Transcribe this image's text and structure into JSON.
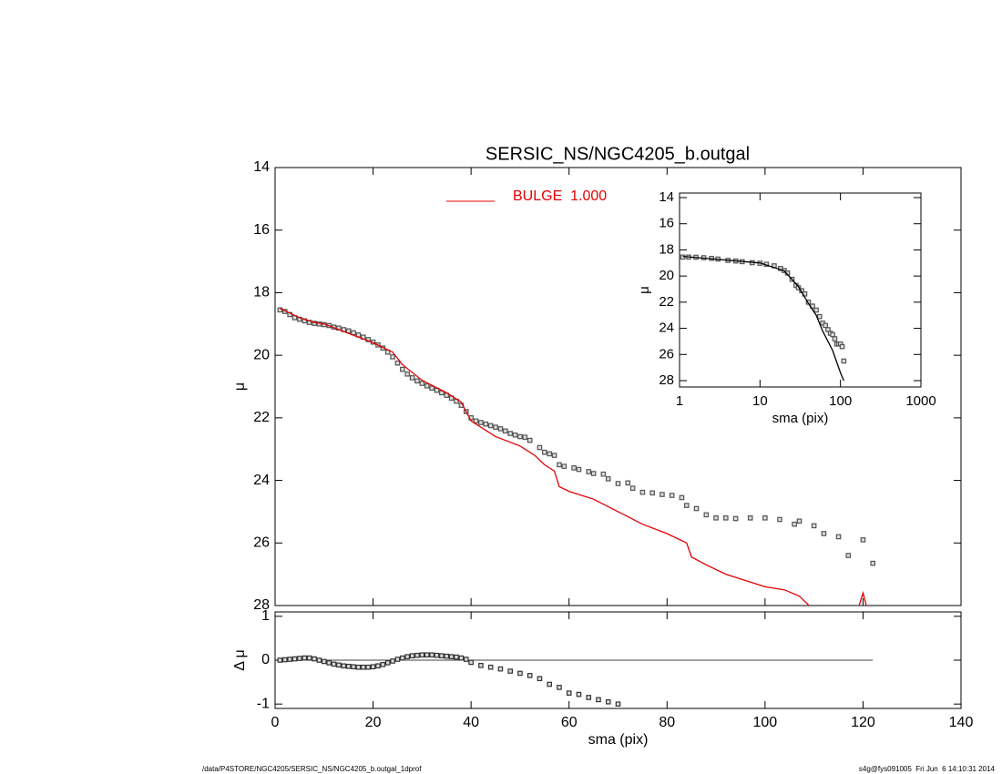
{
  "chart_data": [
    {
      "type": "scatter",
      "title": "SERSIC_NS/NGC4205_b.outgal",
      "ylabel": "μ",
      "xlim": [
        0,
        140
      ],
      "xticks": [
        0,
        20,
        40,
        60,
        80,
        100,
        120,
        140
      ],
      "ylim": [
        14,
        28
      ],
      "yticks": [
        14,
        16,
        18,
        20,
        22,
        24,
        26,
        28
      ],
      "y_inverted": true,
      "series": [
        {
          "color": "#555555",
          "mode": "markers",
          "x": [
            1,
            2,
            3,
            4,
            5,
            6,
            7,
            8,
            9,
            10,
            11,
            12,
            13,
            14,
            15,
            16,
            17,
            18,
            19,
            20,
            21,
            22,
            23,
            24,
            25,
            26,
            27,
            28,
            29,
            30,
            31,
            32,
            33,
            34,
            35,
            36,
            37,
            38,
            39,
            40,
            41,
            42,
            43,
            44,
            45,
            46,
            47,
            48,
            49,
            50,
            51,
            52,
            54,
            55,
            56,
            57,
            58,
            59,
            61,
            62,
            64,
            65,
            67,
            68,
            70,
            72,
            73,
            75,
            77,
            79,
            81,
            83,
            84,
            86,
            88,
            90,
            92,
            94,
            97,
            100,
            103,
            106,
            107,
            110,
            112,
            115,
            117,
            120,
            122
          ],
          "values": [
            18.55,
            18.6,
            18.7,
            18.8,
            18.85,
            18.9,
            18.95,
            18.98,
            19.0,
            19.02,
            19.05,
            19.1,
            19.13,
            19.18,
            19.22,
            19.28,
            19.35,
            19.42,
            19.5,
            19.58,
            19.67,
            19.77,
            19.9,
            20.05,
            20.25,
            20.45,
            20.6,
            20.72,
            20.82,
            20.9,
            20.98,
            21.05,
            21.12,
            21.2,
            21.28,
            21.37,
            21.47,
            21.6,
            21.8,
            22.0,
            22.1,
            22.15,
            22.2,
            22.25,
            22.3,
            22.35,
            22.42,
            22.5,
            22.55,
            22.6,
            22.62,
            22.72,
            22.95,
            23.1,
            23.15,
            23.2,
            23.5,
            23.55,
            23.6,
            23.65,
            23.72,
            23.78,
            23.8,
            23.95,
            24.1,
            24.08,
            24.25,
            24.38,
            24.4,
            24.45,
            24.48,
            24.55,
            24.8,
            24.9,
            25.1,
            25.2,
            25.2,
            25.22,
            25.2,
            25.2,
            25.25,
            25.4,
            25.3,
            25.45,
            25.7,
            25.8,
            26.4,
            25.9,
            26.65
          ]
        },
        {
          "name": "BULGE  1.000",
          "color": "#e00000",
          "mode": "line",
          "x": [
            1,
            5,
            8,
            10,
            15,
            20,
            24,
            26,
            30,
            35,
            38,
            40,
            45,
            50,
            53,
            55,
            57,
            58,
            60,
            65,
            70,
            75,
            80,
            84,
            85,
            88,
            92,
            96,
            100,
            104,
            107,
            109,
            110,
            119,
            120,
            121
          ],
          "values": [
            18.5,
            18.8,
            18.95,
            19.0,
            19.3,
            19.6,
            19.9,
            20.3,
            20.8,
            21.2,
            21.5,
            22.1,
            22.6,
            22.9,
            23.2,
            23.5,
            23.7,
            24.2,
            24.35,
            24.6,
            25.0,
            25.4,
            25.7,
            26.0,
            26.45,
            26.7,
            27.0,
            27.2,
            27.4,
            27.5,
            27.7,
            28.0,
            28.2,
            28.1,
            27.6,
            28.2
          ]
        }
      ]
    },
    {
      "type": "scatter",
      "ylabel": "Δ μ",
      "xlabel": "sma (pix)",
      "xlim": [
        0,
        140
      ],
      "xticks": [
        0,
        20,
        40,
        60,
        80,
        100,
        120,
        140
      ],
      "ylim": [
        -1.1,
        1.1
      ],
      "yticks": [
        -1,
        0,
        1
      ],
      "hline": {
        "y": 0,
        "x": [
          0,
          122
        ]
      },
      "series": [
        {
          "color": "#333333",
          "mode": "markers",
          "x": [
            1,
            2,
            3,
            4,
            5,
            6,
            7,
            8,
            9,
            10,
            11,
            12,
            13,
            14,
            15,
            16,
            17,
            18,
            19,
            20,
            21,
            22,
            23,
            24,
            25,
            26,
            27,
            28,
            29,
            30,
            31,
            32,
            33,
            34,
            35,
            36,
            37,
            38,
            39,
            40,
            42,
            44,
            46,
            48,
            50,
            52,
            54,
            56,
            58,
            60,
            62,
            64,
            66,
            68,
            70
          ],
          "values": [
            0.0,
            0.01,
            0.02,
            0.03,
            0.04,
            0.05,
            0.05,
            0.03,
            0.0,
            -0.03,
            -0.06,
            -0.09,
            -0.11,
            -0.13,
            -0.14,
            -0.15,
            -0.16,
            -0.16,
            -0.16,
            -0.15,
            -0.13,
            -0.1,
            -0.06,
            -0.02,
            0.02,
            0.05,
            0.08,
            0.1,
            0.11,
            0.12,
            0.12,
            0.12,
            0.11,
            0.1,
            0.09,
            0.08,
            0.07,
            0.05,
            0.02,
            -0.05,
            -0.12,
            -0.16,
            -0.2,
            -0.25,
            -0.3,
            -0.35,
            -0.42,
            -0.55,
            -0.62,
            -0.75,
            -0.78,
            -0.85,
            -0.9,
            -0.95,
            -1.0
          ]
        }
      ]
    },
    {
      "type": "scatter",
      "ylabel": "μ",
      "xlabel": "sma (pix)",
      "log_x": true,
      "xlim": [
        1,
        1000
      ],
      "xticks": [
        1,
        10,
        100,
        1000
      ],
      "ylim": [
        14,
        28
      ],
      "yticks": [
        14,
        16,
        18,
        20,
        22,
        24,
        26,
        28
      ],
      "y_inverted": true,
      "series": [
        {
          "color": "#555555",
          "mode": "markers",
          "x": [
            1.1,
            1.3,
            1.6,
            2,
            2.5,
            3,
            4,
            5,
            6,
            8,
            10,
            12,
            15,
            18,
            20,
            22,
            25,
            28,
            30,
            33,
            36,
            40,
            45,
            50,
            55,
            60,
            65,
            70,
            75,
            80,
            85,
            90,
            95,
            100,
            105,
            110
          ],
          "values": [
            18.55,
            18.55,
            18.56,
            18.6,
            18.65,
            18.7,
            18.8,
            18.85,
            18.9,
            18.98,
            19.02,
            19.1,
            19.22,
            19.42,
            19.58,
            19.77,
            20.25,
            20.72,
            20.9,
            21.12,
            21.37,
            22.0,
            22.3,
            22.6,
            23.1,
            23.6,
            23.78,
            24.1,
            24.38,
            24.48,
            24.8,
            25.2,
            25.2,
            25.2,
            25.4,
            26.5
          ]
        },
        {
          "color": "#000000",
          "mode": "line",
          "x": [
            1.1,
            10,
            20,
            30,
            40,
            50,
            60,
            70,
            80,
            90,
            100,
            110
          ],
          "values": [
            18.5,
            19.0,
            19.6,
            20.8,
            22.1,
            23.0,
            24.2,
            25.0,
            25.7,
            26.6,
            27.4,
            28.0
          ]
        }
      ]
    }
  ],
  "footer": {
    "left": "/data/P4STORE/NGC4205/SERSIC_NS/NGC4205_b.outgal_1dprof",
    "right": "s4g@fys091005  Fri Jun  6 14:10:31 2014"
  }
}
